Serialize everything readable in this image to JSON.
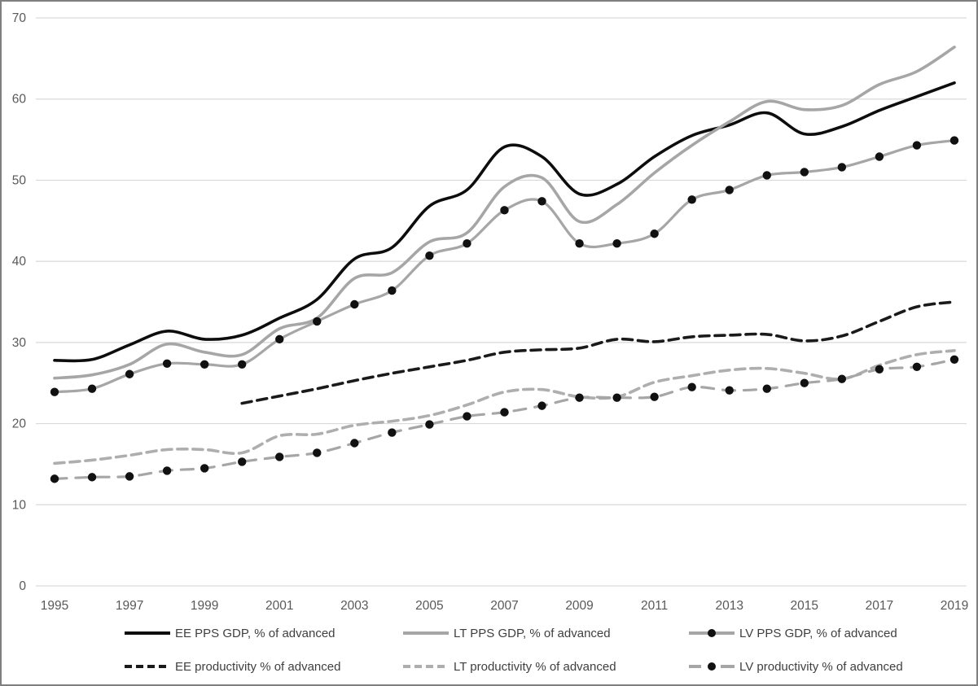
{
  "chart_data": {
    "type": "line",
    "title": "",
    "xlabel": "",
    "ylabel": "",
    "x": [
      1995,
      1996,
      1997,
      1998,
      1999,
      2000,
      2001,
      2002,
      2003,
      2004,
      2005,
      2006,
      2007,
      2008,
      2009,
      2010,
      2011,
      2012,
      2013,
      2014,
      2015,
      2016,
      2017,
      2018,
      2019
    ],
    "x_tick_labels": [
      "1995",
      "1997",
      "1999",
      "2001",
      "2003",
      "2005",
      "2007",
      "2009",
      "2011",
      "2013",
      "2015",
      "2017",
      "2019"
    ],
    "x_tick_years": [
      1995,
      1997,
      1999,
      2001,
      2003,
      2005,
      2007,
      2009,
      2011,
      2013,
      2015,
      2017,
      2019
    ],
    "y_ticks": [
      0,
      10,
      20,
      30,
      40,
      50,
      60,
      70
    ],
    "ylim": [
      0,
      70
    ],
    "grid": "horizontal",
    "gridline_color": "#d9d9d9",
    "tick_label_color": "#595959",
    "legend_position": "bottom",
    "series": [
      {
        "name": "EE PPS GDP, % of advanced",
        "color": "#0d0d0d",
        "style": "solid",
        "markers": false,
        "values": [
          27.8,
          27.9,
          29.7,
          31.4,
          30.4,
          30.9,
          33.0,
          35.3,
          40.3,
          41.7,
          46.8,
          48.8,
          54.1,
          52.9,
          48.3,
          49.5,
          52.9,
          55.5,
          56.8,
          58.3,
          55.7,
          56.6,
          58.6,
          60.3,
          62.0
        ]
      },
      {
        "name": "LT PPS GDP, % of advanced",
        "color": "#a6a6a6",
        "style": "solid",
        "markers": false,
        "values": [
          25.6,
          26.0,
          27.3,
          29.8,
          28.8,
          28.5,
          31.7,
          33.0,
          37.9,
          38.6,
          42.4,
          43.5,
          49.2,
          50.3,
          44.9,
          47.0,
          50.9,
          54.3,
          57.2,
          59.7,
          58.7,
          59.2,
          61.8,
          63.4,
          66.4
        ]
      },
      {
        "name": "LV PPS GDP, % of advanced",
        "color": "#a6a6a6",
        "style": "solid",
        "markers": true,
        "marker_color": "#111111",
        "values": [
          23.9,
          24.3,
          26.1,
          27.4,
          27.3,
          27.3,
          30.4,
          32.6,
          34.7,
          36.4,
          40.7,
          42.2,
          46.3,
          47.4,
          42.2,
          42.2,
          43.4,
          47.6,
          48.8,
          50.6,
          51.0,
          51.6,
          52.9,
          54.3,
          54.9
        ]
      },
      {
        "name": "EE productivity % of advanced",
        "color": "#1a1a1a",
        "style": "dashed",
        "markers": false,
        "values": [
          null,
          null,
          null,
          null,
          null,
          22.5,
          23.4,
          24.3,
          25.3,
          26.2,
          27.0,
          27.8,
          28.8,
          29.1,
          29.3,
          30.4,
          30.1,
          30.7,
          30.9,
          31.0,
          30.2,
          30.8,
          32.6,
          34.4,
          35.0
        ]
      },
      {
        "name": "LT productivity % of advanced",
        "color": "#aeaeae",
        "style": "dashed",
        "markers": false,
        "values": [
          15.1,
          15.5,
          16.1,
          16.8,
          16.8,
          16.4,
          18.5,
          18.7,
          19.8,
          20.3,
          21.0,
          22.3,
          23.9,
          24.2,
          23.3,
          23.3,
          25.1,
          25.9,
          26.6,
          26.8,
          26.2,
          25.5,
          27.2,
          28.5,
          29.0
        ]
      },
      {
        "name": "LV productivity % of advanced",
        "color": "#a6a6a6",
        "style": "dashed",
        "markers": true,
        "marker_color": "#111111",
        "values": [
          13.2,
          13.4,
          13.5,
          14.2,
          14.5,
          15.3,
          15.9,
          16.4,
          17.6,
          18.9,
          19.9,
          20.9,
          21.4,
          22.2,
          23.2,
          23.2,
          23.3,
          24.5,
          24.1,
          24.3,
          25.0,
          25.5,
          26.7,
          27.0,
          27.9
        ]
      }
    ]
  }
}
